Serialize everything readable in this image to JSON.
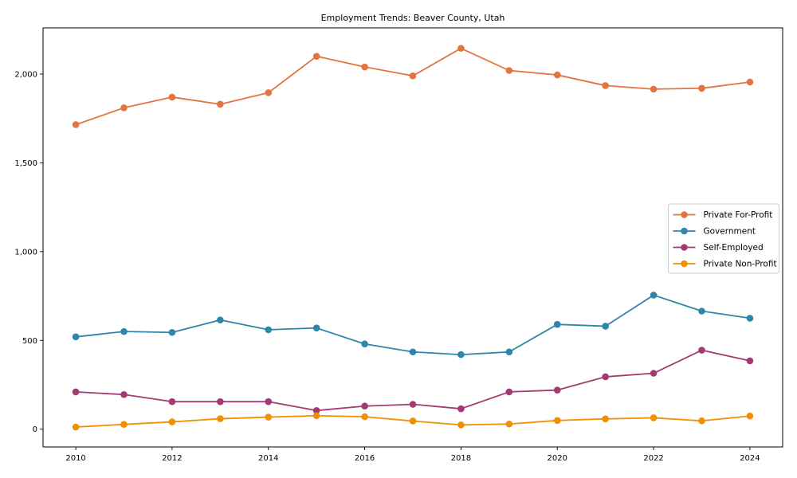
{
  "chart_data": {
    "type": "line",
    "title": "Employment Trends: Beaver County, Utah",
    "xlabel": "",
    "ylabel": "",
    "x": [
      2010,
      2011,
      2012,
      2013,
      2014,
      2015,
      2016,
      2017,
      2018,
      2019,
      2020,
      2021,
      2022,
      2023,
      2024
    ],
    "series": [
      {
        "name": "Private For-Profit",
        "color": "#E4743F",
        "values": [
          1715,
          1810,
          1870,
          1830,
          1895,
          2100,
          2040,
          1990,
          2145,
          2020,
          1995,
          1935,
          1915,
          1920,
          1955
        ]
      },
      {
        "name": "Government",
        "color": "#2E86AB",
        "values": [
          520,
          550,
          545,
          615,
          560,
          570,
          480,
          435,
          420,
          435,
          590,
          580,
          755,
          665,
          625
        ]
      },
      {
        "name": "Self-Employed",
        "color": "#A23B72",
        "values": [
          210,
          195,
          155,
          155,
          155,
          105,
          130,
          140,
          115,
          210,
          220,
          295,
          315,
          445,
          385
        ]
      },
      {
        "name": "Private Non-Profit",
        "color": "#F18F01",
        "values": [
          12,
          27,
          41,
          59,
          68,
          76,
          70,
          46,
          24,
          29,
          49,
          58,
          64,
          47,
          74
        ]
      }
    ],
    "xlim": [
      2009.32,
      2024.68
    ],
    "ylim": [
      -100,
      2260
    ],
    "xticks": {
      "values": [
        2010,
        2012,
        2014,
        2016,
        2018,
        2020,
        2022,
        2024
      ],
      "labels": [
        "2010",
        "2012",
        "2014",
        "2016",
        "2018",
        "2020",
        "2022",
        "2024"
      ]
    },
    "yticks": {
      "values": [
        0,
        500,
        1000,
        1500,
        2000
      ],
      "labels": [
        "0",
        "500",
        "1,000",
        "1,500",
        "2,000"
      ]
    },
    "grid": false,
    "marker": "circle",
    "legend_position": "right-middle",
    "axis_color": "#000000",
    "legend_border_color": "#cccccc",
    "legend_background": "#ffffff"
  }
}
